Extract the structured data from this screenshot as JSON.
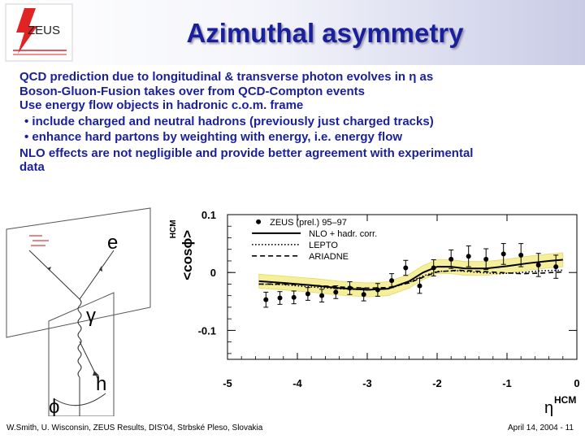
{
  "slide": {
    "title": "Azimuthal asymmetry",
    "logo_text": "ZEUS",
    "body": {
      "line1": "QCD prediction due to longitudinal & transverse photon evolves in η as",
      "line2": "Boson-Gluon-Fusion takes over from QCD-Compton events",
      "line3": "Use energy flow objects in hadronic c.o.m. frame",
      "bullet1": "• include charged and neutral hadrons (previously just charged tracks)",
      "bullet2": "• enhance hard partons by weighting with energy, i.e. energy flow",
      "line4": "NLO effects are not negligible and provide better agreement with experimental",
      "line5": "data"
    },
    "footer_left": "W.Smith, U. Wisconsin, ZEUS Results, DIS'04, Strbské Pleso, Slovakia",
    "footer_right": "April 14, 2004 - 11"
  },
  "diagram": {
    "label_e": "e",
    "label_gamma": "γ",
    "label_h": "h",
    "label_phi": "ϕ"
  },
  "colors": {
    "title": "#1a1f9c",
    "text": "#1a1f9c",
    "band": "#f5ee9a",
    "diagram_red": "#cc1111"
  },
  "chart_data": {
    "type": "line",
    "ylabel": "<cosϕ>",
    "ylabel_sub": "HCM",
    "xlabel": "η",
    "xlabel_sub": "HCM",
    "xlim": [
      -5,
      0
    ],
    "ylim": [
      -0.15,
      0.1
    ],
    "x_ticks": [
      "-5",
      "-4",
      "-3",
      "-2",
      "-1",
      "0"
    ],
    "y_ticks": [
      "0.1",
      "0",
      "-0.1"
    ],
    "legend": {
      "experiment": "ZEUS",
      "experiment_note": "(prel.) 95–97",
      "entries": [
        "NLO + hadr. corr.",
        "LEPTO",
        "ARIADNE"
      ]
    },
    "series": [
      {
        "name": "ZEUS (prel.) 95–97",
        "style": "points",
        "x": [
          -4.45,
          -4.25,
          -4.05,
          -3.85,
          -3.65,
          -3.45,
          -3.25,
          -3.05,
          -2.85,
          -2.65,
          -2.45,
          -2.25,
          -2.05,
          -1.8,
          -1.55,
          -1.3,
          -1.05,
          -0.8,
          -0.55,
          -0.3
        ],
        "y": [
          -0.047,
          -0.044,
          -0.043,
          -0.037,
          -0.04,
          -0.034,
          -0.027,
          -0.038,
          -0.03,
          -0.014,
          0.008,
          -0.023,
          0.008,
          0.023,
          0.028,
          0.023,
          0.032,
          0.03,
          0.013,
          0.01
        ],
        "err": [
          0.013,
          0.011,
          0.011,
          0.011,
          0.011,
          0.011,
          0.011,
          0.011,
          0.011,
          0.012,
          0.013,
          0.013,
          0.014,
          0.016,
          0.018,
          0.018,
          0.018,
          0.02,
          0.02,
          0.02
        ]
      },
      {
        "name": "NLO + hadr. corr.",
        "style": "solid",
        "x": [
          -4.55,
          -4.2,
          -3.8,
          -3.4,
          -3.0,
          -2.7,
          -2.4,
          -2.2,
          -2.0,
          -1.8,
          -1.6,
          -1.3,
          -1.0,
          -0.7,
          -0.4,
          -0.2
        ],
        "y": [
          -0.015,
          -0.018,
          -0.022,
          -0.027,
          -0.03,
          -0.028,
          -0.015,
          0.0,
          0.01,
          0.01,
          0.007,
          0.007,
          0.011,
          0.016,
          0.02,
          0.022
        ],
        "band": 0.012
      },
      {
        "name": "LEPTO",
        "style": "dotted",
        "x": [
          -4.55,
          -4.2,
          -3.8,
          -3.4,
          -3.0,
          -2.7,
          -2.4,
          -2.2,
          -2.0,
          -1.7,
          -1.4,
          -1.1,
          -0.8,
          -0.5,
          -0.2
        ],
        "y": [
          -0.02,
          -0.021,
          -0.025,
          -0.028,
          -0.03,
          -0.028,
          -0.017,
          -0.006,
          0.002,
          0.003,
          0.0,
          -0.002,
          0.0,
          0.003,
          0.004
        ]
      },
      {
        "name": "ARIADNE",
        "style": "dashed",
        "x": [
          -4.55,
          -4.2,
          -3.8,
          -3.4,
          -3.0,
          -2.7,
          -2.4,
          -2.2,
          -2.0,
          -1.7,
          -1.4,
          -1.1,
          -0.8,
          -0.5,
          -0.2
        ],
        "y": [
          -0.02,
          -0.02,
          -0.022,
          -0.025,
          -0.027,
          -0.026,
          -0.018,
          -0.008,
          0.001,
          0.004,
          0.002,
          0.0,
          -0.002,
          -0.001,
          0.001
        ]
      }
    ]
  }
}
